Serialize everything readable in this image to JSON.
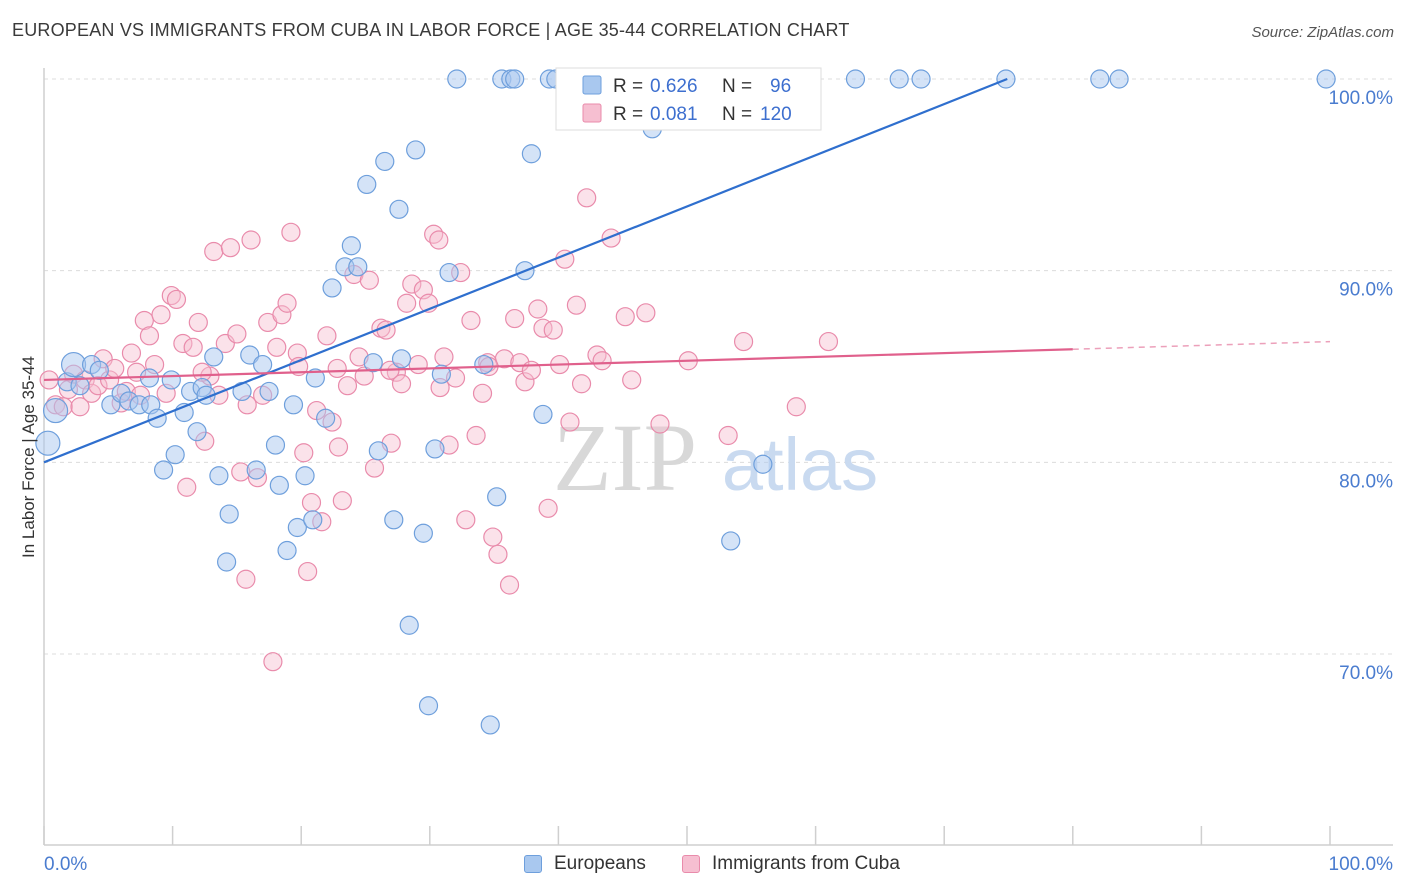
{
  "header": {
    "title": "EUROPEAN VS IMMIGRANTS FROM CUBA IN LABOR FORCE | AGE 35-44 CORRELATION CHART",
    "source": "Source: ZipAtlas.com"
  },
  "watermark": {
    "zip": "ZIP",
    "atlas": "atlas"
  },
  "colors": {
    "blue_fill": "#a9c8ef",
    "blue_stroke": "#6e9fdc",
    "blue_line": "#2f6fce",
    "pink_fill": "#f6bfd1",
    "pink_stroke": "#e98bab",
    "pink_line": "#e0608c",
    "tick_label": "#4a7ccf",
    "grid": "#dcdcdc"
  },
  "stats": [
    {
      "r_label": "R =",
      "r_value": "0.626",
      "n_label": "N =",
      "n_value": "96"
    },
    {
      "r_label": "R =",
      "r_value": "0.081",
      "n_label": "N =",
      "n_value": "120"
    }
  ],
  "chart_data": {
    "type": "scatter",
    "title": "EUROPEAN VS IMMIGRANTS FROM CUBA IN LABOR FORCE | AGE 35-44 CORRELATION CHART",
    "xlabel": "",
    "ylabel": "In Labor Force | Age 35-44",
    "xlim": [
      0,
      100
    ],
    "ylim": [
      62,
      101.5
    ],
    "x_tick_labels": [
      "0.0%",
      "100.0%"
    ],
    "y_ticks": [
      70,
      80,
      90,
      100
    ],
    "y_tick_labels": [
      "70.0%",
      "80.0%",
      "90.0%",
      "100.0%"
    ],
    "grid": true,
    "legend_position": "bottom",
    "series": [
      {
        "name": "Europeans",
        "r": 0.626,
        "n": 96,
        "trend": {
          "x": [
            0,
            74.9
          ],
          "y": [
            80.0,
            100.0
          ]
        },
        "points": [
          [
            0.3,
            81.0
          ],
          [
            0.9,
            82.7
          ],
          [
            1.8,
            84.2
          ],
          [
            2.3,
            85.1
          ],
          [
            2.8,
            84.0
          ],
          [
            3.7,
            85.1
          ],
          [
            4.3,
            84.8
          ],
          [
            5.2,
            83.0
          ],
          [
            6.0,
            83.6
          ],
          [
            6.6,
            83.2
          ],
          [
            7.4,
            83.0
          ],
          [
            8.2,
            84.4
          ],
          [
            8.3,
            83.0
          ],
          [
            8.8,
            82.3
          ],
          [
            9.3,
            79.6
          ],
          [
            9.9,
            84.3
          ],
          [
            10.2,
            80.4
          ],
          [
            10.9,
            82.6
          ],
          [
            11.4,
            83.7
          ],
          [
            11.9,
            81.6
          ],
          [
            12.3,
            83.9
          ],
          [
            12.6,
            83.5
          ],
          [
            13.2,
            85.5
          ],
          [
            13.6,
            79.3
          ],
          [
            14.4,
            77.3
          ],
          [
            14.2,
            74.8
          ],
          [
            15.4,
            83.7
          ],
          [
            16.0,
            85.6
          ],
          [
            16.5,
            79.6
          ],
          [
            17.0,
            85.1
          ],
          [
            17.5,
            83.7
          ],
          [
            18.0,
            80.9
          ],
          [
            18.3,
            78.8
          ],
          [
            18.9,
            75.4
          ],
          [
            19.4,
            83.0
          ],
          [
            19.7,
            76.6
          ],
          [
            20.3,
            79.3
          ],
          [
            20.9,
            77.0
          ],
          [
            21.1,
            84.4
          ],
          [
            21.9,
            82.3
          ],
          [
            22.4,
            89.1
          ],
          [
            23.4,
            90.2
          ],
          [
            23.9,
            91.3
          ],
          [
            24.4,
            90.2
          ],
          [
            25.1,
            94.5
          ],
          [
            25.6,
            85.2
          ],
          [
            26.0,
            80.6
          ],
          [
            26.5,
            95.7
          ],
          [
            27.2,
            77.0
          ],
          [
            27.6,
            93.2
          ],
          [
            27.8,
            85.4
          ],
          [
            28.4,
            71.5
          ],
          [
            28.9,
            96.3
          ],
          [
            29.5,
            76.3
          ],
          [
            29.9,
            67.3
          ],
          [
            30.4,
            80.7
          ],
          [
            30.9,
            84.6
          ],
          [
            31.5,
            89.9
          ],
          [
            32.1,
            100.0
          ],
          [
            34.2,
            85.1
          ],
          [
            34.7,
            66.3
          ],
          [
            35.2,
            78.2
          ],
          [
            35.6,
            100.0
          ],
          [
            36.3,
            100.0
          ],
          [
            36.6,
            100.0
          ],
          [
            37.4,
            90.0
          ],
          [
            37.9,
            96.1
          ],
          [
            38.8,
            82.5
          ],
          [
            39.3,
            100.0
          ],
          [
            39.8,
            100.0
          ],
          [
            41.2,
            100.0
          ],
          [
            41.9,
            100.0
          ],
          [
            43.4,
            100.0
          ],
          [
            44.2,
            100.0
          ],
          [
            45.4,
            100.0
          ],
          [
            46.0,
            100.0
          ],
          [
            47.3,
            97.4
          ],
          [
            48.2,
            100.0
          ],
          [
            49.3,
            100.0
          ],
          [
            50.0,
            100.0
          ],
          [
            51.1,
            100.0
          ],
          [
            53.4,
            75.9
          ],
          [
            54.2,
            100.0
          ],
          [
            55.9,
            79.9
          ],
          [
            57.4,
            99.5
          ],
          [
            63.1,
            100.0
          ],
          [
            66.5,
            100.0
          ],
          [
            68.2,
            100.0
          ],
          [
            74.8,
            100.0
          ],
          [
            82.1,
            100.0
          ],
          [
            83.6,
            100.0
          ],
          [
            99.7,
            100.0
          ]
        ]
      },
      {
        "name": "Immigrants from Cuba",
        "r": 0.081,
        "n": 120,
        "trend": {
          "x": [
            0,
            80.0
          ],
          "y": [
            84.3,
            85.9
          ]
        },
        "trend_dashed": {
          "x": [
            80.0,
            100.0
          ],
          "y": [
            85.9,
            86.3
          ]
        },
        "points": [
          [
            0.4,
            84.3
          ],
          [
            0.9,
            83.0
          ],
          [
            1.5,
            82.9
          ],
          [
            1.9,
            83.8
          ],
          [
            2.3,
            84.6
          ],
          [
            2.8,
            82.9
          ],
          [
            3.2,
            84.3
          ],
          [
            3.7,
            83.6
          ],
          [
            4.2,
            84.0
          ],
          [
            4.6,
            85.4
          ],
          [
            5.1,
            84.3
          ],
          [
            5.5,
            84.9
          ],
          [
            6.0,
            83.1
          ],
          [
            6.4,
            83.7
          ],
          [
            6.8,
            85.7
          ],
          [
            7.2,
            84.7
          ],
          [
            7.5,
            83.5
          ],
          [
            7.8,
            87.4
          ],
          [
            8.2,
            86.6
          ],
          [
            8.6,
            85.1
          ],
          [
            9.1,
            87.7
          ],
          [
            9.5,
            83.6
          ],
          [
            9.9,
            88.7
          ],
          [
            10.3,
            88.5
          ],
          [
            10.8,
            86.2
          ],
          [
            11.1,
            78.7
          ],
          [
            11.6,
            86.0
          ],
          [
            12.0,
            87.3
          ],
          [
            12.5,
            81.1
          ],
          [
            12.9,
            84.5
          ],
          [
            13.2,
            91.0
          ],
          [
            13.6,
            83.5
          ],
          [
            14.1,
            86.2
          ],
          [
            14.5,
            91.2
          ],
          [
            15.0,
            86.7
          ],
          [
            15.3,
            79.5
          ],
          [
            15.7,
            73.9
          ],
          [
            16.1,
            91.6
          ],
          [
            16.6,
            79.2
          ],
          [
            17.0,
            83.5
          ],
          [
            17.4,
            87.3
          ],
          [
            17.8,
            69.6
          ],
          [
            18.1,
            86.0
          ],
          [
            18.5,
            87.7
          ],
          [
            18.9,
            88.3
          ],
          [
            19.2,
            92.0
          ],
          [
            19.7,
            85.7
          ],
          [
            20.2,
            80.5
          ],
          [
            20.5,
            74.3
          ],
          [
            20.8,
            77.9
          ],
          [
            21.2,
            82.7
          ],
          [
            21.6,
            76.9
          ],
          [
            22.0,
            86.6
          ],
          [
            22.4,
            82.1
          ],
          [
            22.8,
            84.9
          ],
          [
            23.2,
            78.0
          ],
          [
            23.6,
            84.0
          ],
          [
            24.1,
            89.8
          ],
          [
            24.5,
            85.5
          ],
          [
            24.9,
            84.5
          ],
          [
            25.3,
            89.5
          ],
          [
            25.7,
            79.7
          ],
          [
            26.2,
            87.0
          ],
          [
            26.6,
            86.9
          ],
          [
            27.0,
            81.0
          ],
          [
            27.4,
            84.7
          ],
          [
            27.8,
            84.1
          ],
          [
            28.2,
            88.3
          ],
          [
            28.6,
            89.3
          ],
          [
            29.1,
            85.1
          ],
          [
            29.5,
            89.0
          ],
          [
            29.9,
            88.3
          ],
          [
            30.3,
            91.9
          ],
          [
            30.7,
            91.6
          ],
          [
            31.1,
            85.5
          ],
          [
            31.5,
            80.9
          ],
          [
            32.0,
            84.4
          ],
          [
            32.4,
            89.9
          ],
          [
            32.8,
            77.0
          ],
          [
            33.2,
            87.4
          ],
          [
            33.6,
            81.4
          ],
          [
            34.1,
            83.6
          ],
          [
            34.5,
            85.2
          ],
          [
            34.9,
            76.1
          ],
          [
            35.3,
            75.2
          ],
          [
            35.8,
            85.4
          ],
          [
            36.2,
            73.6
          ],
          [
            36.6,
            87.5
          ],
          [
            37.0,
            85.2
          ],
          [
            37.4,
            84.2
          ],
          [
            37.9,
            84.8
          ],
          [
            38.4,
            88.0
          ],
          [
            38.8,
            87.0
          ],
          [
            39.2,
            77.6
          ],
          [
            39.6,
            86.9
          ],
          [
            40.1,
            85.1
          ],
          [
            40.5,
            90.6
          ],
          [
            40.9,
            82.1
          ],
          [
            41.4,
            88.2
          ],
          [
            41.8,
            84.1
          ],
          [
            42.2,
            93.8
          ],
          [
            43.0,
            85.6
          ],
          [
            43.4,
            85.3
          ],
          [
            44.1,
            91.7
          ],
          [
            45.2,
            87.6
          ],
          [
            45.7,
            84.3
          ],
          [
            46.8,
            87.8
          ],
          [
            47.9,
            82.0
          ],
          [
            50.1,
            85.3
          ],
          [
            53.2,
            81.4
          ],
          [
            54.4,
            86.3
          ],
          [
            58.5,
            82.9
          ],
          [
            61.0,
            86.3
          ],
          [
            12.3,
            84.7
          ],
          [
            15.8,
            83.0
          ],
          [
            19.8,
            85.0
          ],
          [
            22.9,
            80.8
          ],
          [
            26.9,
            84.8
          ],
          [
            30.8,
            83.9
          ],
          [
            34.6,
            85.0
          ]
        ]
      }
    ]
  },
  "legend": [
    {
      "label": "Europeans"
    },
    {
      "label": "Immigrants from Cuba"
    }
  ]
}
